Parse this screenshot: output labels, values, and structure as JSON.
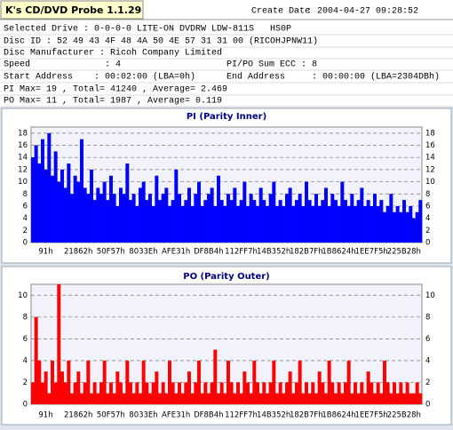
{
  "header": {
    "app_title": "K's CD/DVD Probe 1.1.29",
    "create_date_label": "Create Date",
    "create_date": ": 2004-04-27 09:28:52"
  },
  "info": {
    "rows": [
      [
        "Selected Drive : 0-0-0-0 LITE-ON DVDRW LDW-811S   HS0P"
      ],
      [
        "Disc ID : 52 49 43 4F 48 4A 50 4E 57 31 31 00 (RICOHJPNW11)"
      ],
      [
        "Disc Manufacturer : Ricoh Company Limited"
      ],
      [
        "Speed              : 4",
        "PI/PO Sum ECC : 8"
      ],
      [
        "Start Address    : 00:02:00 (LBA=0h)",
        "End Address     : 00:00:00 (LBA=2304DBh)"
      ],
      [
        "PI Max= 19 , Total= 41240 , Average= 2.469"
      ],
      [
        "PO Max= 11 , Total= 1987 , Average= 0.119"
      ]
    ]
  },
  "chart_data": [
    {
      "type": "bar",
      "title": "PI (Parity Inner)",
      "color": "#0000ff",
      "grid": true,
      "ylim": [
        0,
        19
      ],
      "yticks": [
        0,
        2,
        4,
        6,
        8,
        10,
        12,
        14,
        16,
        18
      ],
      "categories": [
        null,
        null,
        null,
        null,
        "91h",
        null,
        null,
        null,
        null,
        null,
        null,
        null,
        null,
        null,
        "21862h",
        null,
        null,
        null,
        null,
        null,
        null,
        null,
        null,
        null,
        "50F57h",
        null,
        null,
        null,
        null,
        null,
        null,
        null,
        null,
        null,
        "8033Eh",
        null,
        null,
        null,
        null,
        null,
        null,
        null,
        null,
        null,
        "AFE31h",
        null,
        null,
        null,
        null,
        null,
        null,
        null,
        null,
        null,
        "DF8B4h",
        null,
        null,
        null,
        null,
        null,
        null,
        null,
        null,
        null,
        "112FF7h",
        null,
        null,
        null,
        null,
        null,
        null,
        null,
        null,
        null,
        "14B352h",
        null,
        null,
        null,
        null,
        null,
        null,
        null,
        null,
        null,
        "182B7Fh",
        null,
        null,
        null,
        null,
        null,
        null,
        null,
        null,
        null,
        "1B8624h",
        null,
        null,
        null,
        null,
        null,
        null,
        null,
        null,
        null,
        "1EE7F5h",
        null,
        null,
        null,
        null,
        null,
        null,
        null,
        null,
        null,
        "225B28h",
        null,
        null,
        null,
        null,
        null
      ],
      "values": [
        14,
        16,
        13,
        17,
        12,
        18,
        11,
        15,
        10,
        12,
        9,
        13,
        8,
        11,
        10,
        17,
        9,
        8,
        12,
        7,
        9,
        8,
        10,
        7,
        11,
        8,
        6,
        9,
        8,
        13,
        7,
        8,
        6,
        9,
        10,
        7,
        8,
        6,
        11,
        7,
        8,
        9,
        6,
        7,
        12,
        8,
        6,
        7,
        9,
        6,
        8,
        10,
        6,
        7,
        8,
        9,
        6,
        11,
        7,
        6,
        8,
        7,
        9,
        6,
        7,
        10,
        6,
        8,
        7,
        6,
        9,
        7,
        6,
        8,
        10,
        6,
        7,
        6,
        8,
        9,
        6,
        7,
        8,
        6,
        10,
        7,
        6,
        8,
        6,
        7,
        9,
        6,
        8,
        7,
        6,
        10,
        7,
        6,
        8,
        6,
        7,
        9,
        6,
        7,
        6,
        8,
        6,
        7,
        5,
        6,
        8,
        5,
        6,
        5,
        7,
        5,
        6,
        4,
        5,
        7
      ]
    },
    {
      "type": "bar",
      "title": "PO (Parity Outer)",
      "color": "#ff0000",
      "grid": true,
      "ylim": [
        0,
        11
      ],
      "yticks": [
        0,
        2,
        4,
        6,
        8,
        10
      ],
      "categories": [
        null,
        null,
        null,
        null,
        "91h",
        null,
        null,
        null,
        null,
        null,
        null,
        null,
        null,
        null,
        "21862h",
        null,
        null,
        null,
        null,
        null,
        null,
        null,
        null,
        null,
        "50F57h",
        null,
        null,
        null,
        null,
        null,
        null,
        null,
        null,
        null,
        "8033Eh",
        null,
        null,
        null,
        null,
        null,
        null,
        null,
        null,
        null,
        "AFE31h",
        null,
        null,
        null,
        null,
        null,
        null,
        null,
        null,
        null,
        "DF8B4h",
        null,
        null,
        null,
        null,
        null,
        null,
        null,
        null,
        null,
        "112FF7h",
        null,
        null,
        null,
        null,
        null,
        null,
        null,
        null,
        null,
        "14B352h",
        null,
        null,
        null,
        null,
        null,
        null,
        null,
        null,
        null,
        "182B7Fh",
        null,
        null,
        null,
        null,
        null,
        null,
        null,
        null,
        null,
        "1B8624h",
        null,
        null,
        null,
        null,
        null,
        null,
        null,
        null,
        null,
        "1EE7F5h",
        null,
        null,
        null,
        null,
        null,
        null,
        null,
        null,
        null,
        "225B28h",
        null,
        null,
        null,
        null,
        null
      ],
      "values": [
        2,
        8,
        4,
        2,
        3,
        1,
        4,
        2,
        11,
        3,
        2,
        4,
        1,
        2,
        3,
        1,
        2,
        4,
        1,
        2,
        1,
        2,
        4,
        1,
        2,
        1,
        3,
        2,
        1,
        4,
        2,
        1,
        2,
        1,
        4,
        2,
        1,
        2,
        3,
        1,
        2,
        1,
        4,
        2,
        1,
        2,
        1,
        2,
        3,
        1,
        2,
        4,
        1,
        2,
        1,
        2,
        5,
        1,
        2,
        1,
        4,
        2,
        1,
        2,
        1,
        3,
        2,
        1,
        4,
        2,
        1,
        2,
        1,
        2,
        4,
        1,
        2,
        1,
        2,
        3,
        1,
        2,
        4,
        1,
        2,
        1,
        2,
        1,
        3,
        2,
        1,
        4,
        2,
        1,
        2,
        1,
        2,
        4,
        1,
        2,
        1,
        2,
        1,
        3,
        2,
        1,
        2,
        1,
        4,
        2,
        1,
        2,
        1,
        2,
        1,
        2,
        1,
        1,
        2,
        1
      ]
    }
  ]
}
